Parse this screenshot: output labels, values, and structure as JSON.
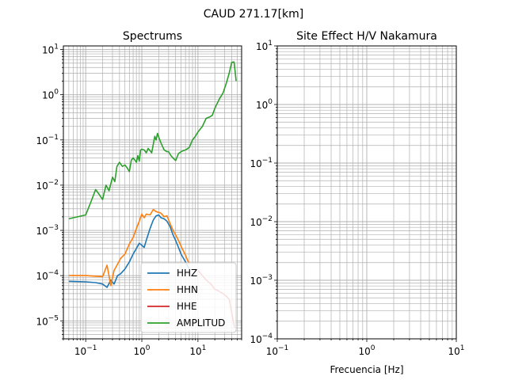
{
  "figure_title": "CAUD 271.17[km]",
  "chart_data": [
    {
      "type": "line",
      "title": "Spectrums",
      "xlabel": "",
      "ylabel": "",
      "xscale": "log",
      "yscale": "log",
      "xlim": [
        0.04,
        60
      ],
      "ylim": [
        4e-06,
        12
      ],
      "grid": "major and minor",
      "xticks": [
        {
          "label": "10",
          "exp": "−1"
        },
        {
          "label": "10",
          "exp": "0"
        },
        {
          "label": "10",
          "exp": "1"
        }
      ],
      "yticks": [
        {
          "label": "10",
          "exp": "−5"
        },
        {
          "label": "10",
          "exp": "−4"
        },
        {
          "label": "10",
          "exp": "−3"
        },
        {
          "label": "10",
          "exp": "−2"
        },
        {
          "label": "10",
          "exp": "−1"
        },
        {
          "label": "10",
          "exp": "0"
        },
        {
          "label": "10",
          "exp": "1"
        }
      ],
      "legend_position": "lower-right",
      "series": [
        {
          "name": "HHZ",
          "color": "#1f77b4",
          "x": [
            0.05,
            0.1,
            0.15,
            0.2,
            0.24,
            0.28,
            0.32,
            0.37,
            0.42,
            0.5,
            0.6,
            0.7,
            0.8,
            0.9,
            1,
            1.1,
            1.2,
            1.4,
            1.6,
            1.8,
            2,
            2.2,
            2.5,
            2.8,
            3.2,
            3.6,
            4,
            4.5,
            5,
            6,
            7
          ],
          "y": [
            7.5e-05,
            7.3e-05,
            7e-05,
            6.5e-05,
            5.5e-05,
            8e-05,
            6.5e-05,
            0.0001,
            0.00011,
            0.00014,
            0.0002,
            0.0003,
            0.0004,
            0.00052,
            0.00047,
            0.00042,
            0.0006,
            0.0011,
            0.0017,
            0.0021,
            0.0022,
            0.0019,
            0.0018,
            0.0016,
            0.0012,
            0.0008,
            0.0006,
            0.00042,
            0.0003,
            0.0002,
            0.00014
          ]
        },
        {
          "name": "HHN",
          "color": "#ff7f0e",
          "x": [
            0.05,
            0.1,
            0.15,
            0.2,
            0.24,
            0.28,
            0.32,
            0.37,
            0.42,
            0.5,
            0.6,
            0.7,
            0.8,
            0.9,
            1,
            1.1,
            1.2,
            1.4,
            1.6,
            1.8,
            2,
            2.2,
            2.5,
            2.8,
            3.2,
            3.6,
            4,
            4.5,
            5,
            6,
            7
          ],
          "y": [
            0.0001,
            0.0001,
            9.7e-05,
            9.5e-05,
            0.00017,
            6e-05,
            0.00013,
            0.00018,
            0.00024,
            0.0003,
            0.0005,
            0.0007,
            0.0011,
            0.0016,
            0.0023,
            0.0019,
            0.0023,
            0.0022,
            0.0029,
            0.0026,
            0.0025,
            0.0024,
            0.002,
            0.0021,
            0.0014,
            0.001,
            0.0008,
            0.0006,
            0.00045,
            0.00028,
            0.00018
          ]
        },
        {
          "name": "HHE",
          "color": "#d62728",
          "x": [
            10,
            12,
            14,
            17,
            20,
            24,
            28,
            32,
            36,
            40,
            45
          ],
          "y": [
            0.00013,
            0.0001,
            8e-05,
            6.5e-05,
            5e-05,
            4.5e-05,
            4e-05,
            3.5e-05,
            3e-05,
            1.5e-05,
            7e-06
          ]
        },
        {
          "name": "AMPLITUD",
          "color": "#2ca02c",
          "x": [
            0.05,
            0.1,
            0.13,
            0.15,
            0.17,
            0.2,
            0.23,
            0.26,
            0.3,
            0.33,
            0.36,
            0.4,
            0.45,
            0.5,
            0.55,
            0.6,
            0.65,
            0.7,
            0.75,
            0.8,
            0.85,
            0.9,
            0.95,
            1,
            1.1,
            1.2,
            1.3,
            1.5,
            1.7,
            1.8,
            1.9,
            2,
            2.2,
            2.5,
            2.8,
            3,
            3.3,
            3.6,
            4,
            4.5,
            5,
            5.5,
            6,
            7,
            8,
            9,
            10,
            12,
            14,
            16,
            18,
            20,
            24,
            28,
            32,
            36,
            40,
            44,
            48
          ],
          "y": [
            0.0018,
            0.0022,
            0.005,
            0.008,
            0.0065,
            0.0048,
            0.01,
            0.0075,
            0.015,
            0.012,
            0.026,
            0.032,
            0.026,
            0.028,
            0.024,
            0.02,
            0.036,
            0.04,
            0.036,
            0.032,
            0.045,
            0.034,
            0.06,
            0.062,
            0.06,
            0.052,
            0.065,
            0.052,
            0.12,
            0.1,
            0.14,
            0.115,
            0.085,
            0.06,
            0.055,
            0.055,
            0.045,
            0.04,
            0.035,
            0.05,
            0.055,
            0.058,
            0.06,
            0.068,
            0.1,
            0.12,
            0.15,
            0.2,
            0.3,
            0.32,
            0.35,
            0.5,
            0.8,
            1.1,
            1.8,
            3,
            5.2,
            5.3,
            2
          ]
        }
      ]
    },
    {
      "type": "line",
      "title": "Site Effect H/V Nakamura",
      "xlabel": "Frecuencia [Hz]",
      "ylabel": "",
      "xscale": "log",
      "yscale": "log",
      "xlim": [
        0.1,
        10
      ],
      "ylim": [
        0.0001,
        10
      ],
      "grid": "major and minor",
      "xticks": [
        {
          "label": "10",
          "exp": "−1"
        },
        {
          "label": "10",
          "exp": "0"
        },
        {
          "label": "10",
          "exp": "1"
        }
      ],
      "yticks": [
        {
          "label": "10",
          "exp": "−4"
        },
        {
          "label": "10",
          "exp": "−3"
        },
        {
          "label": "10",
          "exp": "−2"
        },
        {
          "label": "10",
          "exp": "−1"
        },
        {
          "label": "10",
          "exp": "0"
        },
        {
          "label": "10",
          "exp": "1"
        }
      ],
      "series": []
    }
  ]
}
